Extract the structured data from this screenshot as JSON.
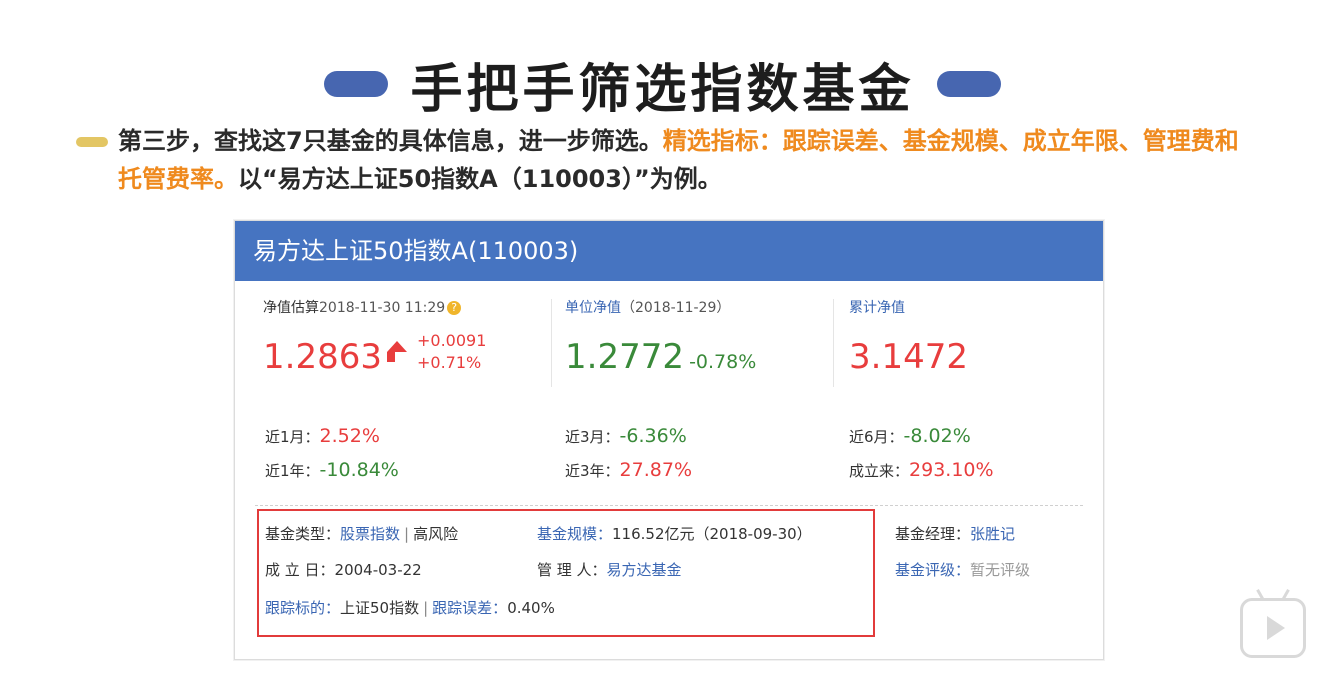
{
  "slide": {
    "title": "手把手筛选指数基金",
    "intro_part1": "第三步，查找这7只基金的具体信息，进一步筛选。",
    "intro_highlight": "精选指标：跟踪误差、基金规模、成立年限、管理费和托管费率。",
    "intro_part2": "以“易方达上证50指数A（110003）”为例。"
  },
  "fund": {
    "name": "易方达上证50指数A(110003)",
    "estimate": {
      "label": "净值估算",
      "datetime": "2018-11-30 11:29",
      "value": "1.2863",
      "change_abs": "+0.0091",
      "change_pct": "+0.71%"
    },
    "unit_nav": {
      "label": "单位净值",
      "date": "（2018-11-29）",
      "value": "1.2772",
      "change_pct": "-0.78%"
    },
    "acc_nav": {
      "label": "累计净值",
      "value": "3.1472"
    },
    "performance": [
      {
        "label": "近1月：",
        "value": "2.52%"
      },
      {
        "label": "近3月：",
        "value": "-6.36%"
      },
      {
        "label": "近6月：",
        "value": "-8.02%"
      },
      {
        "label": "近1年：",
        "value": "-10.84%"
      },
      {
        "label": "近3年：",
        "value": "27.87%"
      },
      {
        "label": "成立来：",
        "value": "293.10%"
      }
    ],
    "info": {
      "type_label": "基金类型：",
      "type_value": "股票指数",
      "risk": "高风险",
      "size_label": "基金规模：",
      "size_value": "116.52亿元（2018-09-30）",
      "manager_label": "基金经理：",
      "manager_value": "张胜记",
      "founded_label": "成 立 日：",
      "founded_value": "2004-03-22",
      "company_label": "管 理 人：",
      "company_value": "易方达基金",
      "rating_label": "基金评级：",
      "rating_value": "暂无评级",
      "tracking_label": "跟踪标的：",
      "tracking_value": "上证50指数",
      "error_label": "跟踪误差：",
      "error_value": "0.40%"
    }
  },
  "colors": {
    "header_blue": "#4674c1",
    "up_red": "#e83d3d",
    "down_green": "#3a8a3a",
    "highlight_orange": "#ef8a1e",
    "box_red": "#e23b3b"
  },
  "icons": {
    "estimate_info": "info-icon",
    "watermark": "video-play-icon"
  }
}
